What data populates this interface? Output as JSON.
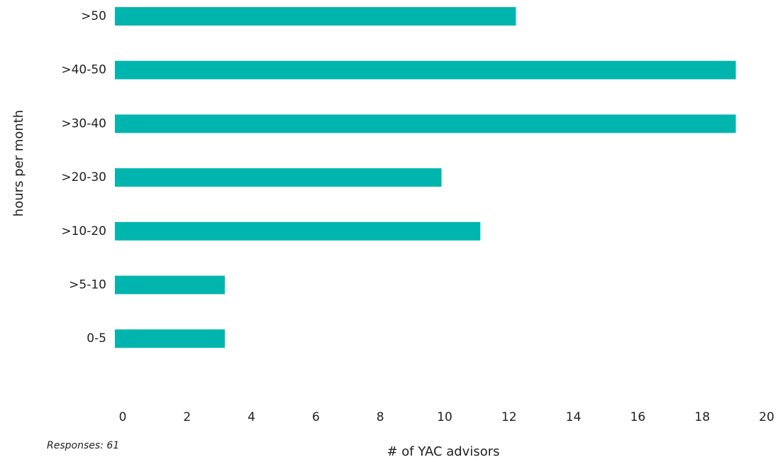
{
  "note": "Responses: 61",
  "chart_data": {
    "type": "bar",
    "orientation": "horizontal",
    "categories": [
      ">50",
      ">40-50",
      ">30-40",
      ">20-30",
      ">10-20",
      ">5-10",
      "0-5"
    ],
    "values": [
      12.4,
      19.2,
      19.2,
      10.1,
      11.3,
      3.4,
      3.4
    ],
    "xlabel": "# of YAC advisors",
    "ylabel": "hours per month",
    "xlim": [
      0,
      20
    ],
    "xticks": [
      0,
      2,
      4,
      6,
      8,
      10,
      12,
      14,
      16,
      18,
      20
    ],
    "grid": false,
    "bar_color": "#00b5ad"
  }
}
